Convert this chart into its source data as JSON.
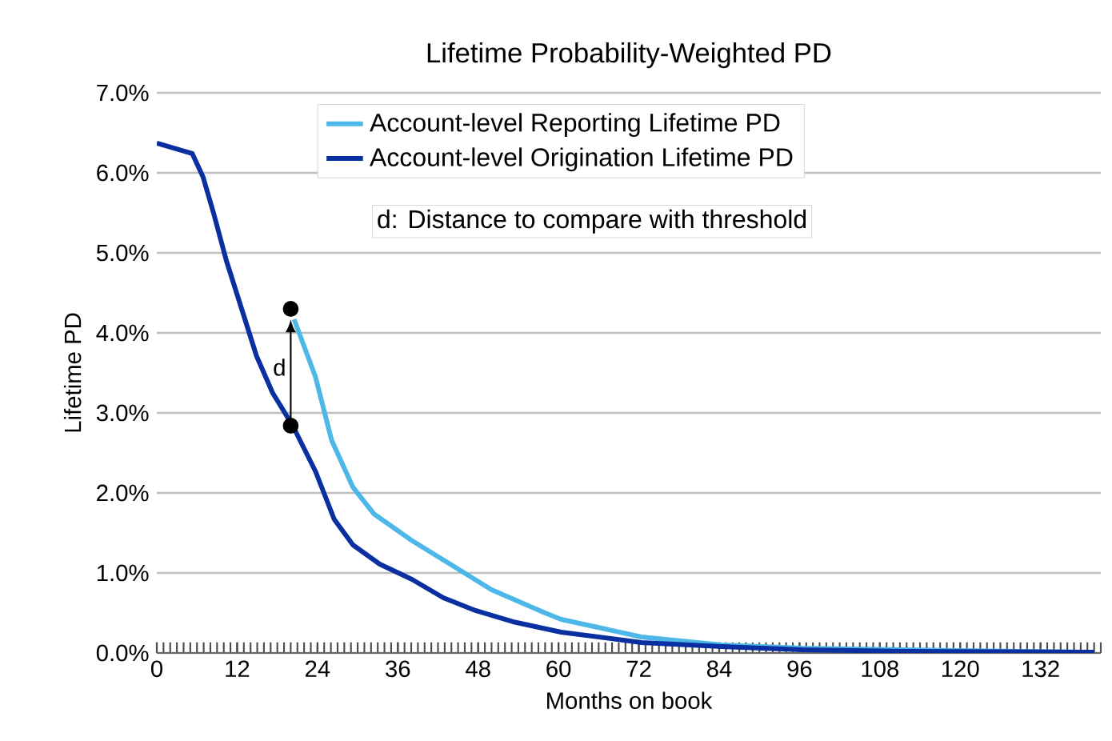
{
  "chart_data": {
    "type": "line",
    "title": "Lifetime Probability-Weighted PD",
    "xlabel": "Months on book",
    "ylabel": "Lifetime PD",
    "xlim": [
      0,
      141
    ],
    "xticks": [
      0,
      12,
      24,
      36,
      48,
      60,
      72,
      84,
      96,
      108,
      120,
      132
    ],
    "ylim": [
      0,
      7
    ],
    "yticks": [
      {
        "value": 0,
        "label": "0.0%"
      },
      {
        "value": 1,
        "label": "1.0%"
      },
      {
        "value": 2,
        "label": "2.0%"
      },
      {
        "value": 3,
        "label": "3.0%"
      },
      {
        "value": 4,
        "label": "4.0%"
      },
      {
        "value": 5,
        "label": "5.0%"
      },
      {
        "value": 6,
        "label": "6.0%"
      },
      {
        "value": 7,
        "label": "7.0%"
      }
    ],
    "grid": "y",
    "legend": "top",
    "line_style": "solid",
    "series": [
      {
        "name": "Account-level Reporting Lifetime PD",
        "color": "#4db8e8",
        "x": [
          20.5,
          23.7,
          26.1,
          29.3,
          32.4,
          38,
          44.4,
          50,
          58,
          60.4,
          72.4,
          84.4,
          96.4,
          120,
          138
        ],
        "values": [
          4.17,
          3.45,
          2.66,
          2.07,
          1.74,
          1.41,
          1.08,
          0.79,
          0.5,
          0.42,
          0.2,
          0.1,
          0.06,
          0.03,
          0.01
        ]
      },
      {
        "name": "Account-level Origination Lifetime PD",
        "color": "#0a2fa0",
        "x": [
          0,
          5.3,
          6.9,
          8.5,
          10.4,
          12.9,
          14.9,
          17.3,
          20.3,
          23.7,
          26.5,
          29.3,
          33.3,
          38.1,
          42.8,
          47.6,
          53.2,
          60.4,
          72.4,
          84.4,
          96.4,
          112,
          140
        ],
        "values": [
          6.37,
          6.24,
          5.95,
          5.49,
          4.9,
          4.24,
          3.71,
          3.25,
          2.84,
          2.27,
          1.67,
          1.35,
          1.11,
          0.92,
          0.69,
          0.53,
          0.39,
          0.26,
          0.13,
          0.08,
          0.04,
          0.02,
          0.01
        ]
      },
      {
        "type": "scatter",
        "color": "#000000",
        "x": [
          20,
          20
        ],
        "values": [
          4.3,
          2.84
        ]
      }
    ],
    "annotations": [
      "d",
      "d: Distance to compare with threshold"
    ]
  }
}
